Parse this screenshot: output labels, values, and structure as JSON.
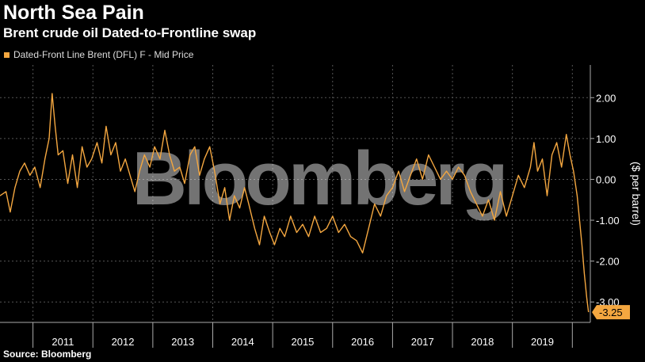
{
  "header": {
    "title": "North Sea Pain",
    "subtitle": "Brent crude oil Dated-to-Frontline swap"
  },
  "legend": {
    "label": "Dated-Front Line Brent (DFL) F - Mid Price"
  },
  "footer": {
    "source": "Source: Bloomberg"
  },
  "watermark": {
    "text": "Bloomberg"
  },
  "colors": {
    "background": "#000000",
    "series": "#f4a740",
    "grid": "#555555",
    "text": "#ffffff"
  },
  "chart_data": {
    "type": "line",
    "title": "North Sea Pain",
    "subtitle": "Brent crude oil Dated-to-Frontline swap",
    "ylabel": "($ per barrel)",
    "ylim": [
      -3.5,
      2.8
    ],
    "yticks": [
      2,
      1,
      0,
      -1,
      -2,
      -3
    ],
    "ytick_labels": [
      "2.00",
      "1.00",
      "0.00",
      "-1.00",
      "-2.00",
      "-3.00"
    ],
    "xlim": [
      2010.45,
      2020.3
    ],
    "xtick_labels": [
      "2011",
      "2012",
      "2013",
      "2014",
      "2015",
      "2016",
      "2017",
      "2018",
      "2019"
    ],
    "xtick_positions": [
      2011.5,
      2012.5,
      2013.5,
      2014.5,
      2015.5,
      2016.5,
      2017.5,
      2018.5,
      2019.5
    ],
    "grid": true,
    "legend_position": "top-left",
    "last_value_label": "-3.25",
    "last_value": -3.25,
    "series": [
      {
        "name": "Dated-Front Line Brent (DFL) F - Mid Price",
        "x": [
          2010.45,
          2010.55,
          2010.62,
          2010.7,
          2010.78,
          2010.86,
          2010.95,
          2011.03,
          2011.12,
          2011.2,
          2011.27,
          2011.32,
          2011.37,
          2011.42,
          2011.5,
          2011.58,
          2011.66,
          2011.74,
          2011.82,
          2011.9,
          2011.98,
          2012.07,
          2012.15,
          2012.22,
          2012.3,
          2012.38,
          2012.46,
          2012.54,
          2012.62,
          2012.7,
          2012.78,
          2012.86,
          2012.95,
          2013.03,
          2013.12,
          2013.2,
          2013.28,
          2013.36,
          2013.45,
          2013.53,
          2013.62,
          2013.7,
          2013.78,
          2013.86,
          2013.95,
          2014.03,
          2014.12,
          2014.2,
          2014.28,
          2014.36,
          2014.45,
          2014.53,
          2014.6,
          2014.7,
          2014.78,
          2014.86,
          2014.95,
          2015.03,
          2015.12,
          2015.2,
          2015.3,
          2015.4,
          2015.5,
          2015.6,
          2015.7,
          2015.8,
          2015.9,
          2016.0,
          2016.1,
          2016.2,
          2016.3,
          2016.4,
          2016.5,
          2016.6,
          2016.7,
          2016.8,
          2016.9,
          2017.0,
          2017.1,
          2017.2,
          2017.3,
          2017.4,
          2017.5,
          2017.6,
          2017.7,
          2017.8,
          2017.9,
          2018.0,
          2018.1,
          2018.2,
          2018.3,
          2018.4,
          2018.5,
          2018.6,
          2018.7,
          2018.8,
          2018.9,
          2019.0,
          2019.1,
          2019.2,
          2019.3,
          2019.36,
          2019.42,
          2019.5,
          2019.58,
          2019.66,
          2019.74,
          2019.82,
          2019.9,
          2019.96,
          2020.02,
          2020.08,
          2020.12,
          2020.16,
          2020.2,
          2020.24,
          2020.27
        ],
        "y": [
          -0.4,
          -0.3,
          -0.8,
          -0.2,
          0.2,
          0.4,
          0.1,
          0.3,
          -0.2,
          0.5,
          1.0,
          2.1,
          1.3,
          0.6,
          0.7,
          -0.1,
          0.6,
          -0.2,
          0.8,
          0.3,
          0.5,
          0.9,
          0.4,
          1.3,
          0.6,
          0.9,
          0.2,
          0.5,
          0.1,
          -0.3,
          0.2,
          0.6,
          0.3,
          0.8,
          0.5,
          1.2,
          0.6,
          0.2,
          0.3,
          -0.1,
          0.6,
          0.8,
          0.1,
          0.5,
          0.8,
          0.2,
          -0.6,
          -0.2,
          -1.0,
          -0.4,
          -0.7,
          -0.2,
          -0.6,
          -1.2,
          -1.6,
          -0.9,
          -1.3,
          -1.6,
          -1.2,
          -1.4,
          -0.9,
          -1.3,
          -1.1,
          -1.4,
          -0.9,
          -1.3,
          -1.2,
          -0.9,
          -1.3,
          -1.1,
          -1.4,
          -1.5,
          -1.8,
          -1.2,
          -0.6,
          -0.9,
          -0.4,
          -0.2,
          0.2,
          -0.3,
          0.1,
          0.5,
          0.0,
          0.6,
          0.3,
          0.0,
          0.2,
          0.0,
          0.3,
          0.1,
          -0.3,
          -0.6,
          -0.9,
          -0.5,
          -1.0,
          -0.3,
          -0.9,
          -0.4,
          0.1,
          -0.2,
          0.3,
          0.9,
          0.2,
          0.5,
          -0.4,
          0.6,
          0.9,
          0.3,
          1.1,
          0.6,
          0.2,
          -0.4,
          -1.0,
          -1.6,
          -2.3,
          -2.9,
          -3.25
        ]
      }
    ]
  }
}
